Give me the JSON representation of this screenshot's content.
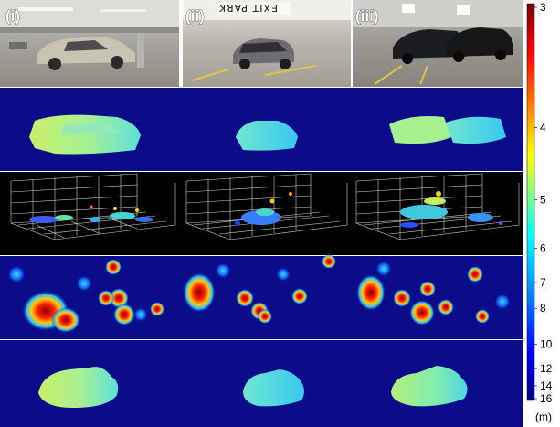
{
  "panels": {
    "labels": [
      "(i)",
      "(ii)",
      "(iii)"
    ],
    "sign_text": "EXIT PARK"
  },
  "colorbar": {
    "ticks": [
      "3",
      "4",
      "5",
      "6",
      "7",
      "8",
      "10",
      "12",
      "14",
      "16"
    ],
    "unit": "(m)",
    "colors": [
      "#7f0000",
      "#ff0000",
      "#ff8000",
      "#ffff00",
      "#80ff80",
      "#00ffff",
      "#0080ff",
      "#0000ff",
      "#000080"
    ]
  },
  "colors": {
    "background_blue": "#0a0c8a",
    "deep_navy": "#00007f"
  }
}
